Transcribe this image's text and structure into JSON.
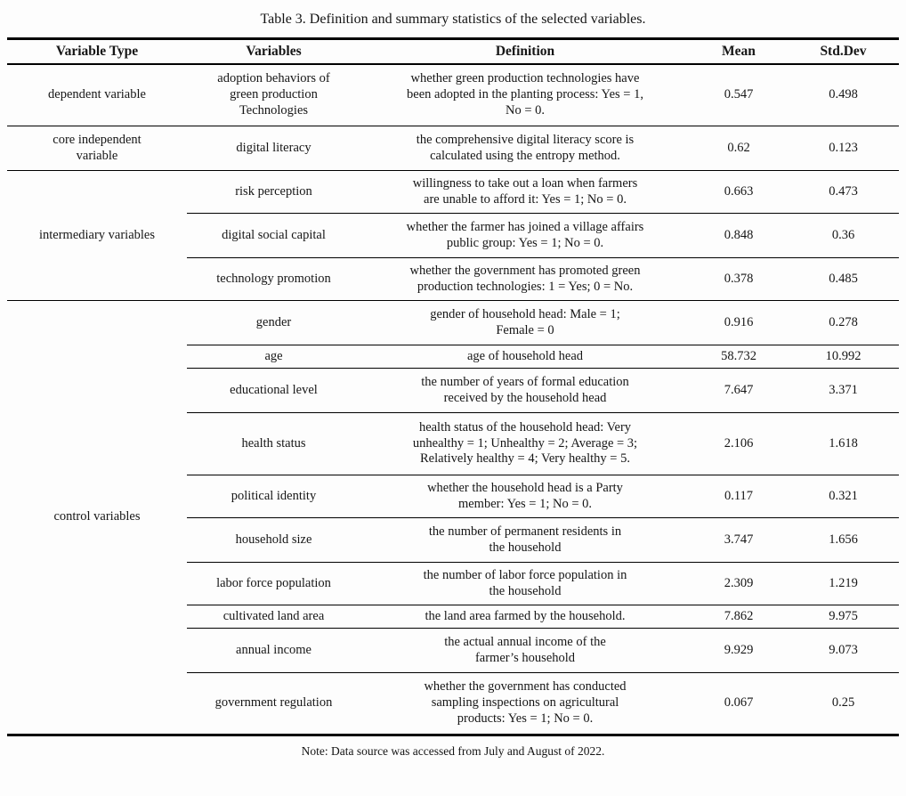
{
  "caption": "Table 3. Definition and summary statistics of the selected variables.",
  "note": "Note: Data source was accessed from July and August of 2022.",
  "header": {
    "variable_type": "Variable Type",
    "variables": "Variables",
    "definition": "Definition",
    "mean": "Mean",
    "std_dev": "Std.Dev"
  },
  "groups": [
    {
      "type": "dependent variable",
      "rows": [
        {
          "variable": "adoption behaviors of\ngreen production\nTechnologies",
          "definition": "whether green production technologies have\nbeen adopted in the planting process: Yes = 1,\nNo = 0.",
          "mean": "0.547",
          "std_dev": "0.498"
        }
      ]
    },
    {
      "type": "core independent\nvariable",
      "rows": [
        {
          "variable": "digital literacy",
          "definition": "the comprehensive digital literacy score is\ncalculated using the entropy method.",
          "mean": "0.62",
          "std_dev": "0.123"
        }
      ]
    },
    {
      "type": "intermediary variables",
      "rows": [
        {
          "variable": "risk perception",
          "definition": "willingness to take out a loan when farmers\nare unable to afford it: Yes = 1; No = 0.",
          "mean": "0.663",
          "std_dev": "0.473"
        },
        {
          "variable": "digital social capital",
          "definition": "whether the farmer has joined a village affairs\npublic group: Yes = 1; No = 0.",
          "mean": "0.848",
          "std_dev": "0.36"
        },
        {
          "variable": "technology promotion",
          "definition": "whether the government has promoted green\nproduction technologies: 1 = Yes; 0 = No.",
          "mean": "0.378",
          "std_dev": "0.485"
        }
      ]
    },
    {
      "type": "control variables",
      "rows": [
        {
          "variable": "gender",
          "definition": "gender of household head: Male = 1;\nFemale = 0",
          "mean": "0.916",
          "std_dev": "0.278"
        },
        {
          "variable": "age",
          "definition": "age of household head",
          "mean": "58.732",
          "std_dev": "10.992"
        },
        {
          "variable": "educational level",
          "definition": "the number of years of formal education\nreceived by the household head",
          "mean": "7.647",
          "std_dev": "3.371"
        },
        {
          "variable": "health status",
          "definition": "health status of the household head: Very\nunhealthy = 1; Unhealthy = 2; Average = 3;\nRelatively healthy = 4; Very healthy = 5.",
          "mean": "2.106",
          "std_dev": "1.618"
        },
        {
          "variable": "political identity",
          "definition": "whether the household head is a Party\nmember: Yes = 1; No = 0.",
          "mean": "0.117",
          "std_dev": "0.321"
        },
        {
          "variable": "household size",
          "definition": "the number of permanent residents in\nthe household",
          "mean": "3.747",
          "std_dev": "1.656"
        },
        {
          "variable": "labor force population",
          "definition": "the number of labor force population in\nthe household",
          "mean": "2.309",
          "std_dev": "1.219"
        },
        {
          "variable": "cultivated land area",
          "definition": "the land area farmed by the household.",
          "mean": "7.862",
          "std_dev": "9.975"
        },
        {
          "variable": "annual income",
          "definition": "the actual annual income of the\nfarmer’s household",
          "mean": "9.929",
          "std_dev": "9.073"
        },
        {
          "variable": "government regulation",
          "definition": "whether the government has conducted\nsampling inspections on agricultural\nproducts: Yes = 1; No = 0.",
          "mean": "0.067",
          "std_dev": "0.25"
        }
      ]
    }
  ]
}
